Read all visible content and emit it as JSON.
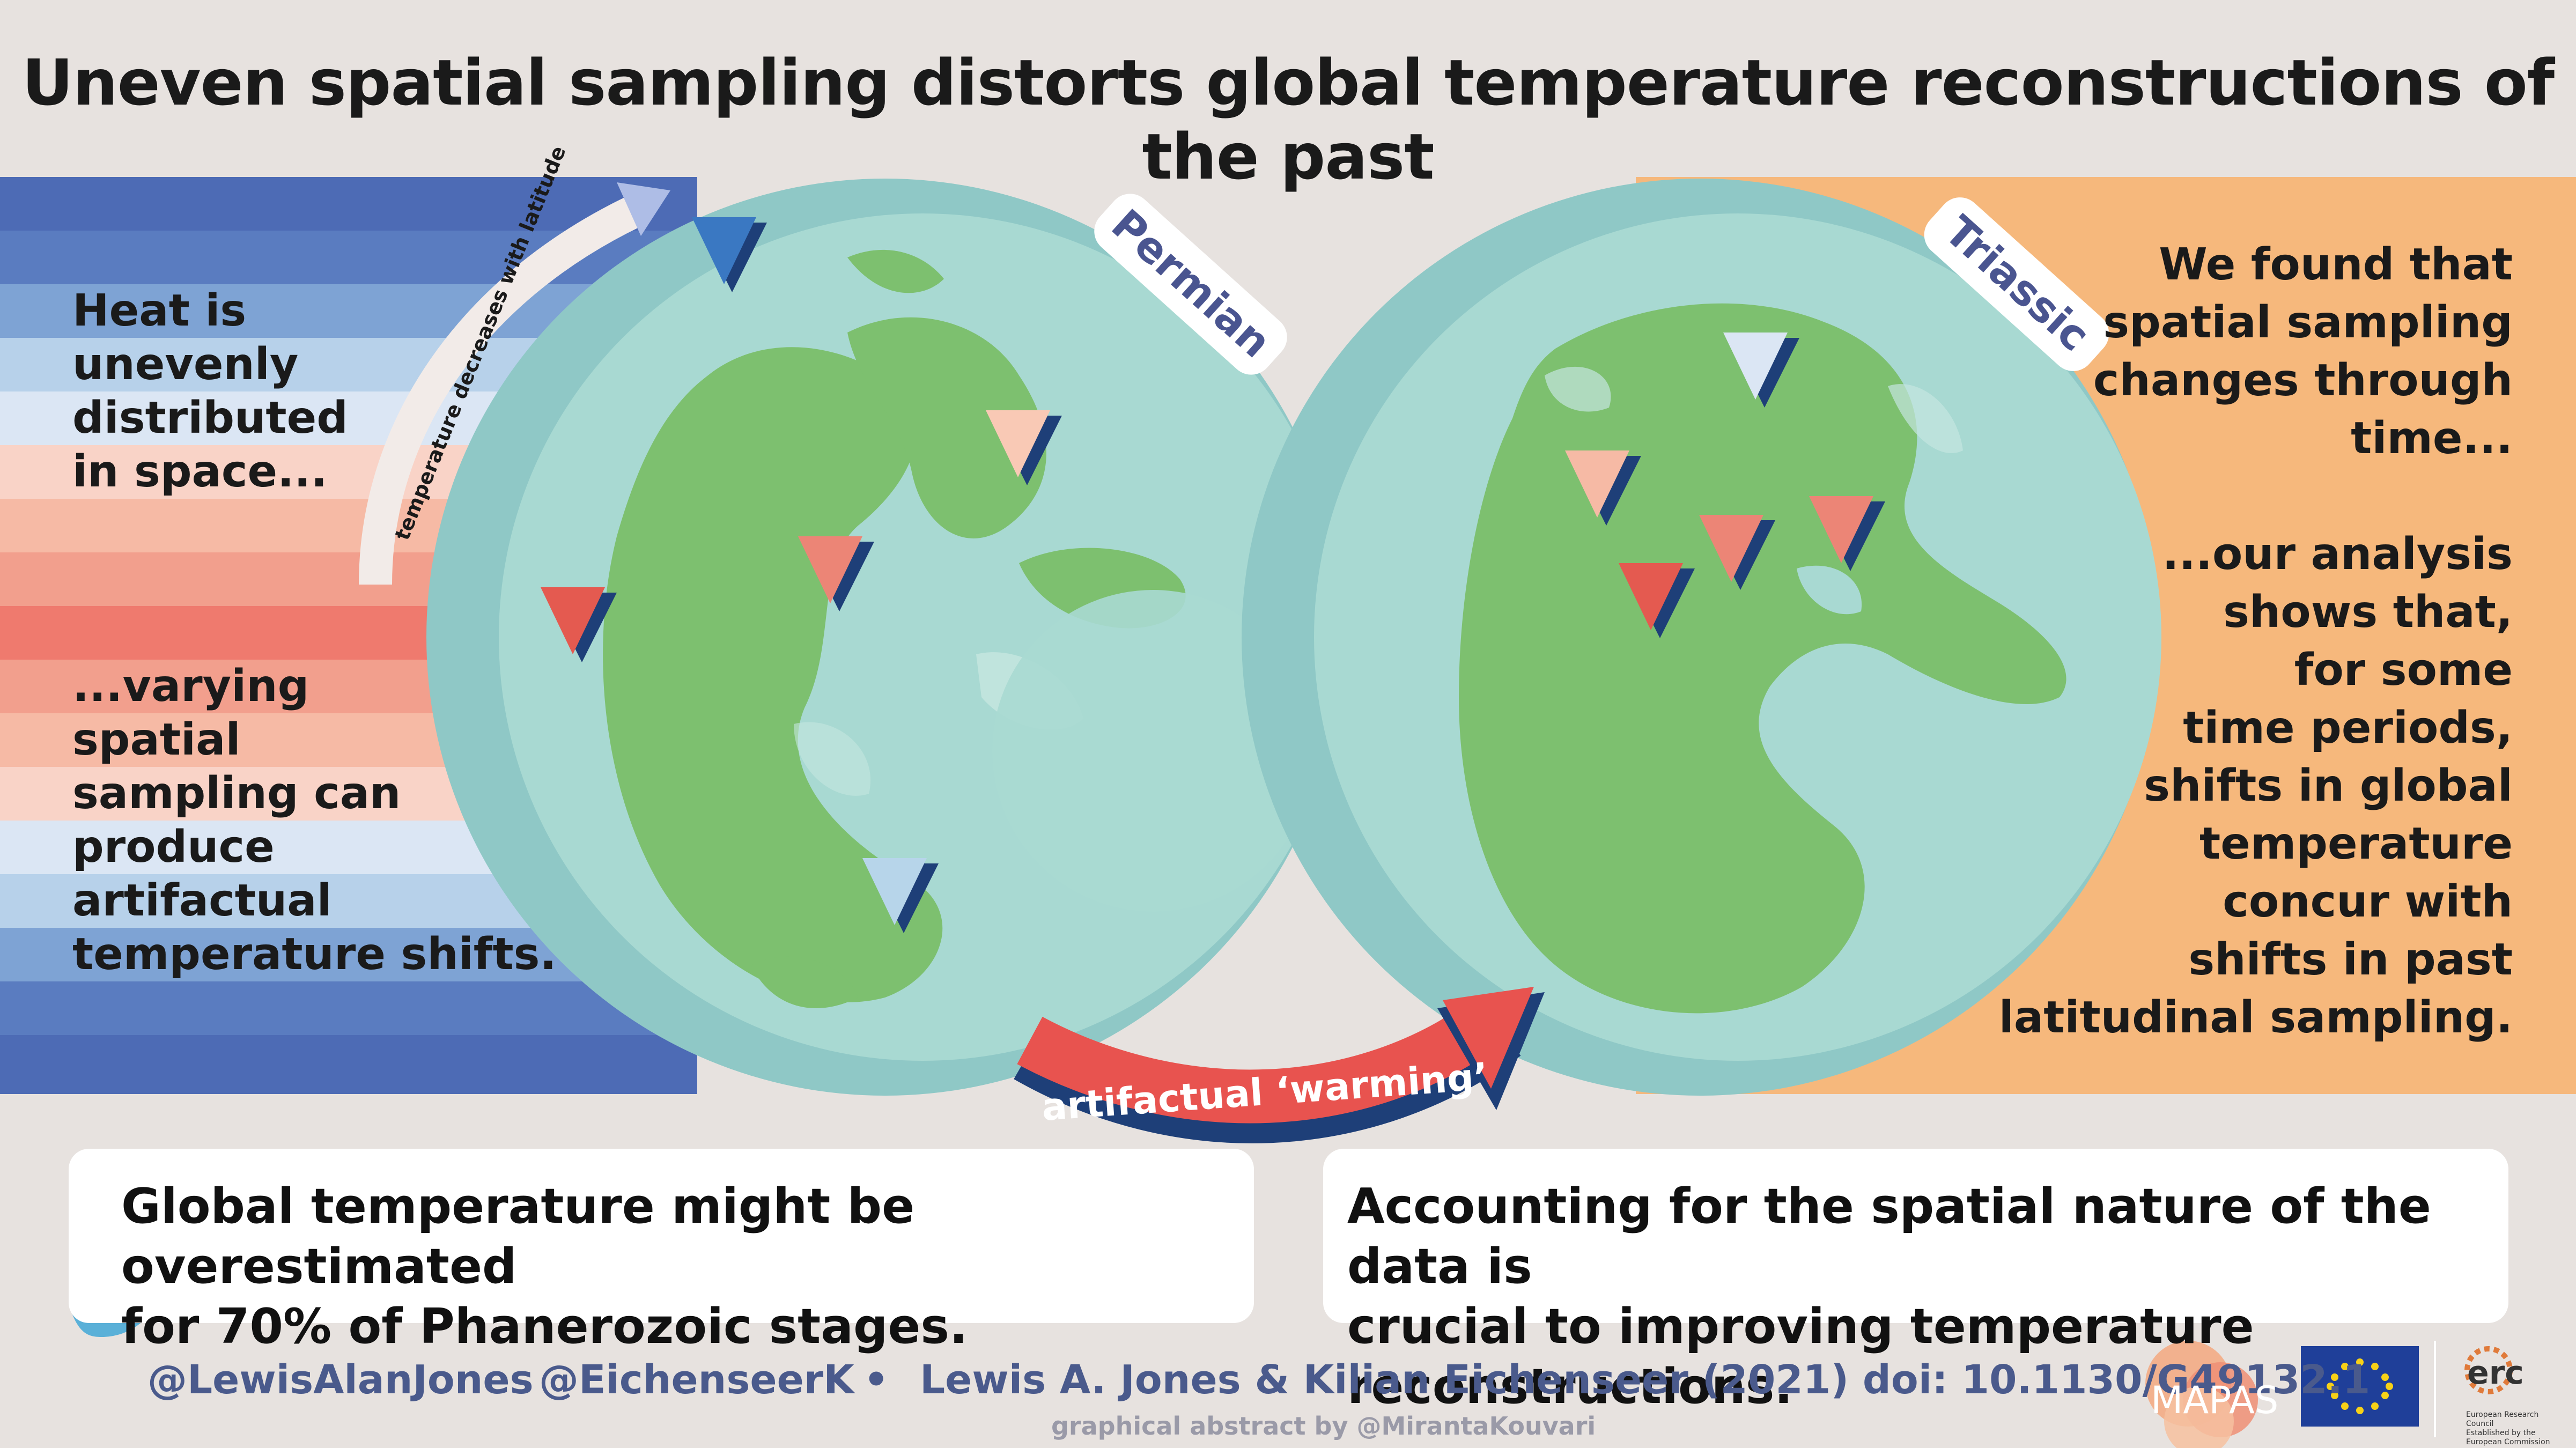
{
  "title": "Uneven spatial sampling distorts global temperature reconstructions of the past",
  "left_panel": {
    "top_text": "Heat is\nunevenly\ndistributed\nin space...",
    "bottom_text": "...varying\nspatial\nsampling can\nproduce\nartifactual\ntemperature shifts.",
    "arrow_label": "temperature decreases with latitude"
  },
  "globes": [
    {
      "label": "Permian"
    },
    {
      "label": "Triassic"
    }
  ],
  "center_arrow_label": "artifactual ‘warming’",
  "right_panel": {
    "top_text": "We found that\nspatial sampling\nchanges through\ntime...",
    "bottom_text": "...our analysis\nshows that,\nfor some\ntime periods,\nshifts in global\ntemperature\nconcur with\nshifts in past\nlatitudinal sampling."
  },
  "conclusions": [
    "Global temperature might be overestimated\nfor 70% of Phanerozoic stages.",
    "Accounting for the spatial nature of the data is\ncrucial to improving temperature reconstructions."
  ],
  "footer": {
    "handle_1": "@LewisAlanJones",
    "handle_2": "@EichenseerK",
    "separator": "•",
    "citation": "Lewis A. Jones & Kilian Eichenseer (2021) doi: 10.1130/G49132.1",
    "credit": "graphical abstract by @MirantaKouvari",
    "logo_mapas": "MAPAS",
    "logo_erc": "erc",
    "logo_erc_sub": "European Research Council\nEstablished by the European Commission"
  },
  "icons": [
    "twitter-bird-icon",
    "eu-flag-icon",
    "erc-logo-icon",
    "mapas-logo-icon"
  ],
  "colors": {
    "background": "#e7e2df",
    "stripe_cold": "#4d6bb5",
    "stripe_warm": "#ef7a6e",
    "ocean": "#a8d9d2",
    "land": "#7dc06f",
    "triassic_panel": "#f6b87c",
    "arrow_red": "#e8534f",
    "arrow_blue": "#1e3f78",
    "label_text": "#4a5590"
  }
}
